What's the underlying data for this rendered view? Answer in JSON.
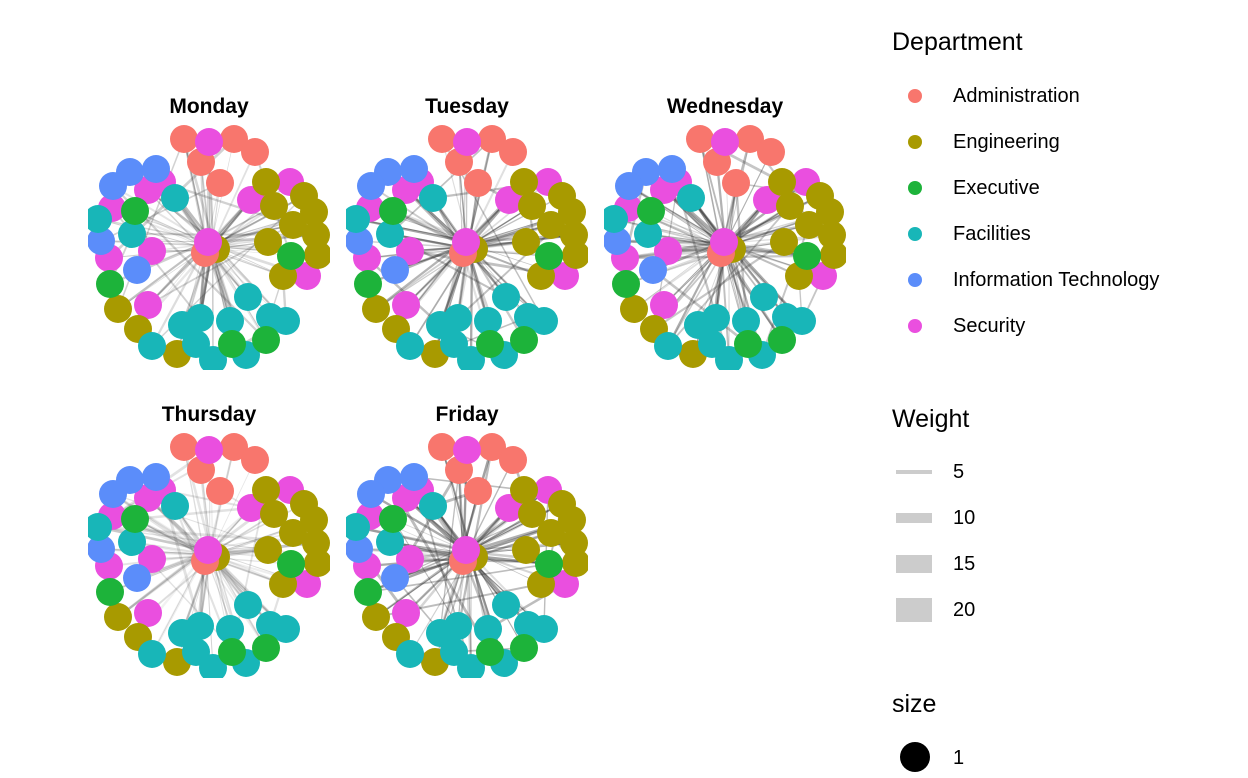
{
  "colors": {
    "Administration": "#F8766D",
    "Engineering": "#A89A00",
    "Executive": "#1DB33A",
    "Facilities": "#18B6B8",
    "Information Technology": "#5B8DFA",
    "Security": "#EA4FDF",
    "edge": "#333333"
  },
  "panels": [
    {
      "title": "Monday",
      "edge_opacity": 0.22
    },
    {
      "title": "Tuesday",
      "edge_opacity": 0.3
    },
    {
      "title": "Wednesday",
      "edge_opacity": 0.28
    },
    {
      "title": "Thursday",
      "edge_opacity": 0.14
    },
    {
      "title": "Friday",
      "edge_opacity": 0.32
    }
  ],
  "legend": {
    "department": {
      "title": "Department",
      "items": [
        "Administration",
        "Engineering",
        "Executive",
        "Facilities",
        "Information Technology",
        "Security"
      ]
    },
    "weight": {
      "title": "Weight",
      "items": [
        {
          "label": "5",
          "value": 5
        },
        {
          "label": "10",
          "value": 10
        },
        {
          "label": "15",
          "value": 15
        },
        {
          "label": "20",
          "value": 20
        }
      ]
    },
    "size": {
      "title": "size",
      "items": [
        {
          "label": "1"
        }
      ]
    }
  }
}
